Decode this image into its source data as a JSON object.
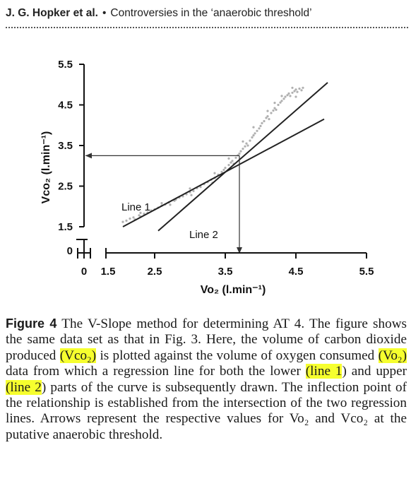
{
  "header": {
    "authors": "J. G. Hopker et al.",
    "bullet": "•",
    "running_title": "Controversies in the ‘anaerobic threshold’"
  },
  "chart_data": {
    "type": "scatter",
    "xlabel": "Vo₂ (l.min⁻¹)",
    "ylabel": "Vco₂ (l.min⁻¹)",
    "x_ticks": [
      "0",
      "1.5",
      "2.5",
      "3.5",
      "4.5",
      "5.5"
    ],
    "y_ticks": [
      "0",
      "1.5",
      "2.5",
      "3.5",
      "4.5",
      "5.5"
    ],
    "xlim": [
      1.5,
      5.5
    ],
    "ylim": [
      1.5,
      5.5
    ],
    "axis_break": true,
    "grid": false,
    "point_color": "#b0b0b0",
    "line_color": "#222222",
    "scatter_points": [
      [
        2.05,
        1.62
      ],
      [
        2.1,
        1.65
      ],
      [
        2.15,
        1.7
      ],
      [
        2.2,
        1.73
      ],
      [
        2.22,
        1.68
      ],
      [
        2.28,
        1.78
      ],
      [
        2.3,
        1.75
      ],
      [
        2.35,
        1.82
      ],
      [
        2.4,
        1.85
      ],
      [
        2.45,
        1.9
      ],
      [
        2.5,
        1.93
      ],
      [
        2.55,
        1.97
      ],
      [
        2.6,
        2.02
      ],
      [
        2.65,
        2.05
      ],
      [
        2.7,
        2.1
      ],
      [
        2.72,
        2.04
      ],
      [
        2.78,
        2.14
      ],
      [
        2.8,
        2.17
      ],
      [
        2.85,
        2.22
      ],
      [
        2.9,
        2.25
      ],
      [
        2.95,
        2.3
      ],
      [
        3.0,
        2.35
      ],
      [
        3.02,
        2.28
      ],
      [
        3.05,
        2.38
      ],
      [
        3.1,
        2.45
      ],
      [
        3.15,
        2.48
      ],
      [
        3.2,
        2.55
      ],
      [
        3.25,
        2.6
      ],
      [
        3.3,
        2.66
      ],
      [
        3.32,
        2.58
      ],
      [
        3.35,
        2.7
      ],
      [
        3.4,
        2.78
      ],
      [
        3.45,
        2.85
      ],
      [
        3.48,
        2.9
      ],
      [
        3.5,
        2.95
      ],
      [
        3.55,
        3.02
      ],
      [
        3.58,
        3.08
      ],
      [
        3.6,
        3.12
      ],
      [
        3.62,
        3.05
      ],
      [
        3.65,
        3.2
      ],
      [
        3.68,
        3.26
      ],
      [
        3.7,
        3.3
      ],
      [
        3.72,
        3.36
      ],
      [
        3.75,
        3.42
      ],
      [
        3.78,
        3.48
      ],
      [
        3.8,
        3.55
      ],
      [
        3.82,
        3.5
      ],
      [
        3.85,
        3.62
      ],
      [
        3.88,
        3.7
      ],
      [
        3.9,
        3.75
      ],
      [
        3.92,
        3.8
      ],
      [
        3.95,
        3.86
      ],
      [
        3.98,
        3.92
      ],
      [
        4.0,
        3.98
      ],
      [
        4.02,
        4.05
      ],
      [
        4.05,
        4.1
      ],
      [
        4.08,
        4.18
      ],
      [
        4.1,
        4.22
      ],
      [
        4.12,
        4.15
      ],
      [
        4.15,
        4.3
      ],
      [
        4.18,
        4.36
      ],
      [
        4.2,
        4.42
      ],
      [
        4.22,
        4.38
      ],
      [
        4.25,
        4.5
      ],
      [
        4.28,
        4.56
      ],
      [
        4.3,
        4.6
      ],
      [
        4.33,
        4.65
      ],
      [
        4.35,
        4.7
      ],
      [
        4.38,
        4.74
      ],
      [
        4.4,
        4.78
      ],
      [
        4.42,
        4.72
      ],
      [
        4.45,
        4.8
      ],
      [
        4.48,
        4.84
      ],
      [
        4.5,
        4.88
      ],
      [
        4.52,
        4.82
      ],
      [
        4.55,
        4.9
      ],
      [
        4.58,
        4.86
      ],
      [
        4.6,
        4.92
      ],
      [
        4.2,
        4.55
      ],
      [
        4.3,
        4.72
      ],
      [
        4.1,
        4.35
      ],
      [
        3.9,
        3.95
      ],
      [
        3.75,
        3.6
      ],
      [
        3.55,
        3.18
      ],
      [
        3.35,
        2.82
      ],
      [
        3.0,
        2.44
      ],
      [
        2.6,
        2.08
      ],
      [
        2.3,
        1.84
      ],
      [
        4.45,
        4.92
      ],
      [
        4.5,
        4.7
      ]
    ],
    "series": [
      {
        "name": "Line 1",
        "points": [
          [
            2.05,
            1.5
          ],
          [
            4.9,
            4.15
          ]
        ]
      },
      {
        "name": "Line 2",
        "points": [
          [
            2.55,
            1.4
          ],
          [
            4.95,
            5.05
          ]
        ]
      }
    ],
    "annotations": {
      "vco2_at_threshold": 3.25,
      "vo2_at_threshold": 3.7
    }
  },
  "caption": {
    "label": "Figure 4",
    "line1_text": " The V-Slope method for determining AT 4. The",
    "line2": "figure shows the same data set as that in Fig. 3. Here, the",
    "line3_pre": "volume of carbon dioxide produced ",
    "line3_hl": "(Vco₂)",
    "line3_post": " is plotted against",
    "line4_pre": "the volume of oxygen consumed ",
    "line4_hl": "(Vo₂)",
    "line4_post": " data from which a",
    "line5_pre": "regression line for both the lower ",
    "line5_hl1": "(line 1",
    "line5_mid": ") and upper ",
    "line5_hl2": "(line 2",
    "line5_post": ")",
    "line6": "parts of the curve is subsequently drawn. The inflection point",
    "line7": "of the relationship is established from the intersection of the",
    "line8": "two regression lines. Arrows represent the respective values",
    "line9": "for Vo₂ and Vco₂ at the putative anaerobic threshold."
  }
}
